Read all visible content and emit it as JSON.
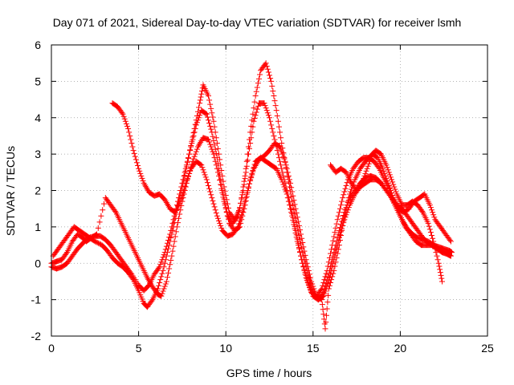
{
  "chart_data": {
    "type": "scatter",
    "title": "Day 071 of 2021, Sidereal Day-to-day VTEC variation (SDTVAR) for receiver lsmh",
    "xlabel": "GPS time / hours",
    "ylabel": "SDTVAR / TECUs",
    "xlim": [
      0,
      25
    ],
    "ylim": [
      -2,
      6
    ],
    "xticks": [
      "0",
      "5",
      "10",
      "15",
      "20",
      "25"
    ],
    "yticks": [
      "-2",
      "-1",
      "0",
      "1",
      "2",
      "3",
      "4",
      "5",
      "6"
    ],
    "grid": true,
    "marker": "plus",
    "color": "#ff0000",
    "series": [
      {
        "points": [
          [
            0.0,
            -0.1
          ],
          [
            0.3,
            -0.15
          ],
          [
            0.6,
            -0.1
          ],
          [
            0.9,
            0.0
          ],
          [
            1.2,
            0.2
          ],
          [
            1.5,
            0.4
          ],
          [
            1.8,
            0.55
          ],
          [
            2.1,
            0.7
          ],
          [
            2.5,
            0.75
          ],
          [
            2.8,
            0.75
          ],
          [
            3.1,
            0.65
          ],
          [
            3.4,
            0.5
          ],
          [
            3.7,
            0.3
          ],
          [
            4.0,
            0.1
          ],
          [
            4.3,
            -0.1
          ],
          [
            4.6,
            -0.3
          ],
          [
            5.0,
            -0.6
          ],
          [
            5.3,
            -0.75
          ],
          [
            5.6,
            -0.6
          ],
          [
            5.9,
            -0.3
          ],
          [
            6.2,
            -0.1
          ],
          [
            6.5,
            0.3
          ],
          [
            6.8,
            0.8
          ],
          [
            7.1,
            1.4
          ],
          [
            7.4,
            2.0
          ],
          [
            7.7,
            2.6
          ],
          [
            8.0,
            3.2
          ],
          [
            8.3,
            3.8
          ],
          [
            8.6,
            4.2
          ],
          [
            8.9,
            4.1
          ],
          [
            9.2,
            3.6
          ],
          [
            9.5,
            2.9
          ],
          [
            9.8,
            2.0
          ],
          [
            10.1,
            1.3
          ],
          [
            10.4,
            1.1
          ],
          [
            10.7,
            1.3
          ],
          [
            11.0,
            2.0
          ],
          [
            11.3,
            3.0
          ],
          [
            11.6,
            3.9
          ],
          [
            11.9,
            4.4
          ],
          [
            12.2,
            4.4
          ],
          [
            12.5,
            4.0
          ],
          [
            12.8,
            3.4
          ],
          [
            13.1,
            2.8
          ],
          [
            13.4,
            2.2
          ],
          [
            13.7,
            1.6
          ],
          [
            14.0,
            0.9
          ],
          [
            14.3,
            0.2
          ],
          [
            14.6,
            -0.4
          ],
          [
            14.9,
            -0.8
          ],
          [
            15.2,
            -0.9
          ],
          [
            15.5,
            -0.7
          ],
          [
            15.8,
            -0.2
          ],
          [
            16.1,
            0.5
          ],
          [
            16.4,
            1.2
          ],
          [
            16.7,
            1.8
          ],
          [
            17.0,
            2.3
          ],
          [
            17.3,
            2.6
          ],
          [
            17.6,
            2.8
          ],
          [
            17.9,
            2.9
          ],
          [
            18.2,
            2.9
          ],
          [
            18.5,
            2.8
          ],
          [
            18.8,
            2.6
          ],
          [
            19.1,
            2.3
          ],
          [
            19.4,
            2.0
          ],
          [
            19.7,
            1.6
          ],
          [
            20.0,
            1.3
          ],
          [
            20.3,
            1.0
          ],
          [
            20.6,
            0.8
          ],
          [
            20.9,
            0.6
          ],
          [
            21.2,
            0.5
          ],
          [
            21.5,
            0.5
          ],
          [
            21.8,
            0.5
          ],
          [
            22.1,
            0.4
          ],
          [
            22.4,
            0.3
          ],
          [
            22.7,
            0.25
          ],
          [
            22.9,
            0.2
          ]
        ]
      },
      {
        "points": [
          [
            0.1,
            0.2
          ],
          [
            0.4,
            0.4
          ],
          [
            0.7,
            0.6
          ],
          [
            1.0,
            0.8
          ],
          [
            1.3,
            1.0
          ],
          [
            1.6,
            0.9
          ],
          [
            1.9,
            0.8
          ],
          [
            2.2,
            0.7
          ],
          [
            2.5,
            0.6
          ],
          [
            2.9,
            0.5
          ],
          [
            3.2,
            0.35
          ],
          [
            3.5,
            0.15
          ],
          [
            3.8,
            0.0
          ],
          [
            4.1,
            -0.1
          ],
          [
            4.4,
            -0.25
          ],
          [
            4.7,
            -0.45
          ],
          [
            5.0,
            -0.75
          ],
          [
            5.3,
            -1.1
          ],
          [
            5.5,
            -1.2
          ],
          [
            5.8,
            -1.0
          ],
          [
            6.1,
            -0.7
          ],
          [
            6.4,
            -0.2
          ],
          [
            6.7,
            0.4
          ],
          [
            7.0,
            1.0
          ],
          [
            7.3,
            1.7
          ],
          [
            7.6,
            2.3
          ],
          [
            7.9,
            3.0
          ],
          [
            8.2,
            3.7
          ],
          [
            8.5,
            4.4
          ],
          [
            8.7,
            4.9
          ],
          [
            9.0,
            4.6
          ],
          [
            9.3,
            3.9
          ],
          [
            9.6,
            3.0
          ],
          [
            9.9,
            2.1
          ],
          [
            10.2,
            1.4
          ],
          [
            10.5,
            1.2
          ],
          [
            10.8,
            1.5
          ],
          [
            11.1,
            2.4
          ],
          [
            11.4,
            3.6
          ],
          [
            11.7,
            4.6
          ],
          [
            12.0,
            5.3
          ],
          [
            12.3,
            5.5
          ],
          [
            12.6,
            5.0
          ],
          [
            12.9,
            4.2
          ],
          [
            13.2,
            3.3
          ],
          [
            13.5,
            2.5
          ],
          [
            13.8,
            1.7
          ],
          [
            14.1,
            1.0
          ],
          [
            14.4,
            0.3
          ],
          [
            14.7,
            -0.3
          ],
          [
            15.0,
            -0.8
          ],
          [
            15.3,
            -1.0
          ],
          [
            15.6,
            -0.9
          ],
          [
            15.9,
            -0.5
          ],
          [
            16.2,
            0.1
          ],
          [
            16.5,
            0.7
          ],
          [
            16.8,
            1.2
          ],
          [
            17.1,
            1.6
          ],
          [
            17.4,
            1.9
          ],
          [
            17.7,
            2.1
          ],
          [
            18.0,
            2.2
          ],
          [
            18.3,
            2.3
          ],
          [
            18.6,
            2.3
          ],
          [
            18.9,
            2.2
          ],
          [
            19.2,
            2.0
          ],
          [
            19.5,
            1.8
          ],
          [
            19.8,
            1.6
          ],
          [
            20.1,
            1.5
          ],
          [
            20.4,
            1.3
          ],
          [
            20.7,
            1.1
          ],
          [
            21.0,
            0.9
          ],
          [
            21.3,
            0.7
          ],
          [
            21.6,
            0.55
          ],
          [
            21.9,
            0.5
          ],
          [
            22.2,
            0.45
          ],
          [
            22.5,
            0.4
          ],
          [
            22.8,
            0.35
          ],
          [
            22.95,
            0.3
          ]
        ]
      },
      {
        "points": [
          [
            0.0,
            0.0
          ],
          [
            0.3,
            0.05
          ],
          [
            0.6,
            0.1
          ],
          [
            0.9,
            0.3
          ],
          [
            1.2,
            0.6
          ],
          [
            1.5,
            0.8
          ],
          [
            1.8,
            0.7
          ],
          [
            2.0,
            0.6
          ],
          [
            2.3,
            0.7
          ],
          [
            2.6,
            0.8
          ],
          [
            3.1,
            1.8
          ],
          [
            3.4,
            1.6
          ],
          [
            3.7,
            1.4
          ],
          [
            4.0,
            1.1
          ],
          [
            4.3,
            0.8
          ],
          [
            4.6,
            0.5
          ],
          [
            4.9,
            0.2
          ],
          [
            5.2,
            -0.1
          ],
          [
            5.5,
            -0.4
          ],
          [
            5.8,
            -0.65
          ],
          [
            6.1,
            -0.85
          ],
          [
            6.3,
            -0.9
          ],
          [
            6.6,
            -0.5
          ],
          [
            6.9,
            0.2
          ],
          [
            7.2,
            1.0
          ],
          [
            7.5,
            1.7
          ],
          [
            7.8,
            2.3
          ],
          [
            8.1,
            2.8
          ],
          [
            8.4,
            3.2
          ],
          [
            8.7,
            3.45
          ],
          [
            9.0,
            3.4
          ],
          [
            9.3,
            3.0
          ],
          [
            9.6,
            2.4
          ],
          [
            9.9,
            1.7
          ],
          [
            10.2,
            1.1
          ],
          [
            10.5,
            0.9
          ],
          [
            10.8,
            1.0
          ],
          [
            11.1,
            1.6
          ],
          [
            11.4,
            2.3
          ],
          [
            11.7,
            2.8
          ],
          [
            12.0,
            2.9
          ],
          [
            12.3,
            2.8
          ],
          [
            12.6,
            2.7
          ],
          [
            12.9,
            2.6
          ],
          [
            13.2,
            2.3
          ],
          [
            13.5,
            1.9
          ],
          [
            13.8,
            1.3
          ],
          [
            14.1,
            0.6
          ],
          [
            14.4,
            0.0
          ],
          [
            14.7,
            -0.5
          ],
          [
            15.0,
            -0.9
          ],
          [
            15.3,
            -1.0
          ],
          [
            15.6,
            -0.8
          ],
          [
            15.9,
            -0.3
          ],
          [
            16.2,
            0.3
          ],
          [
            16.5,
            0.9
          ],
          [
            16.8,
            1.4
          ],
          [
            17.1,
            1.8
          ],
          [
            17.4,
            2.0
          ],
          [
            17.7,
            2.2
          ],
          [
            18.0,
            2.35
          ],
          [
            18.3,
            2.4
          ],
          [
            18.6,
            2.35
          ],
          [
            18.9,
            2.2
          ],
          [
            19.2,
            2.0
          ],
          [
            19.5,
            1.8
          ],
          [
            19.8,
            1.5
          ],
          [
            20.1,
            1.2
          ],
          [
            20.4,
            0.95
          ],
          [
            20.7,
            0.8
          ],
          [
            21.0,
            0.7
          ],
          [
            21.3,
            0.65
          ],
          [
            21.6,
            0.6
          ],
          [
            21.9,
            0.5
          ],
          [
            22.2,
            0.4
          ],
          [
            22.5,
            0.3
          ],
          [
            22.8,
            0.25
          ]
        ]
      },
      {
        "points": [
          [
            3.5,
            4.4
          ],
          [
            3.8,
            4.3
          ],
          [
            4.1,
            4.1
          ],
          [
            4.4,
            3.7
          ],
          [
            4.7,
            3.1
          ],
          [
            5.0,
            2.6
          ],
          [
            5.3,
            2.2
          ],
          [
            5.6,
            1.95
          ],
          [
            5.9,
            1.85
          ],
          [
            6.2,
            1.9
          ],
          [
            6.5,
            1.75
          ],
          [
            6.8,
            1.5
          ],
          [
            7.1,
            1.4
          ],
          [
            7.4,
            1.7
          ],
          [
            7.7,
            2.2
          ],
          [
            8.0,
            2.6
          ],
          [
            8.3,
            2.8
          ],
          [
            8.6,
            2.7
          ],
          [
            8.9,
            2.3
          ],
          [
            9.2,
            1.8
          ],
          [
            9.5,
            1.3
          ],
          [
            9.8,
            0.9
          ],
          [
            10.1,
            0.75
          ],
          [
            10.4,
            0.8
          ],
          [
            10.7,
            1.0
          ],
          [
            11.0,
            1.5
          ],
          [
            11.3,
            2.1
          ],
          [
            11.6,
            2.6
          ],
          [
            11.9,
            2.85
          ],
          [
            12.2,
            2.95
          ],
          [
            12.5,
            3.1
          ],
          [
            12.8,
            3.3
          ],
          [
            13.1,
            3.2
          ],
          [
            13.4,
            2.8
          ],
          [
            13.7,
            2.2
          ],
          [
            14.0,
            1.5
          ],
          [
            14.3,
            0.8
          ],
          [
            14.6,
            0.1
          ],
          [
            14.9,
            -0.5
          ],
          [
            15.2,
            -0.9
          ],
          [
            15.5,
            -1.0
          ],
          [
            15.7,
            -1.8
          ],
          [
            15.9,
            -0.7
          ],
          [
            16.2,
            -0.2
          ],
          [
            16.5,
            0.5
          ],
          [
            16.8,
            1.3
          ],
          [
            17.1,
            1.9
          ],
          [
            17.4,
            2.3
          ],
          [
            17.7,
            2.6
          ],
          [
            18.0,
            2.8
          ],
          [
            18.3,
            2.95
          ],
          [
            18.6,
            3.1
          ],
          [
            18.9,
            3.0
          ],
          [
            19.2,
            2.7
          ],
          [
            19.5,
            2.3
          ],
          [
            19.8,
            1.9
          ],
          [
            20.1,
            1.6
          ],
          [
            20.4,
            1.6
          ],
          [
            20.7,
            1.7
          ],
          [
            21.0,
            1.6
          ],
          [
            21.3,
            1.4
          ],
          [
            21.6,
            1.1
          ],
          [
            21.9,
            0.6
          ],
          [
            22.2,
            0.0
          ],
          [
            22.4,
            -0.5
          ]
        ]
      },
      {
        "points": [
          [
            16.0,
            2.7
          ],
          [
            16.3,
            2.5
          ],
          [
            16.6,
            2.6
          ],
          [
            16.9,
            2.5
          ],
          [
            17.2,
            2.2
          ],
          [
            17.5,
            2.0
          ],
          [
            17.8,
            2.2
          ],
          [
            18.1,
            2.6
          ],
          [
            18.4,
            3.0
          ],
          [
            18.7,
            2.9
          ],
          [
            19.0,
            2.6
          ],
          [
            19.3,
            2.2
          ],
          [
            19.6,
            1.8
          ],
          [
            19.9,
            1.5
          ],
          [
            20.2,
            1.4
          ],
          [
            20.5,
            1.5
          ],
          [
            20.8,
            1.7
          ],
          [
            21.1,
            1.8
          ],
          [
            21.4,
            1.9
          ],
          [
            21.7,
            1.6
          ],
          [
            22.0,
            1.2
          ],
          [
            22.3,
            1.0
          ],
          [
            22.6,
            0.8
          ],
          [
            22.9,
            0.6
          ]
        ]
      }
    ]
  }
}
